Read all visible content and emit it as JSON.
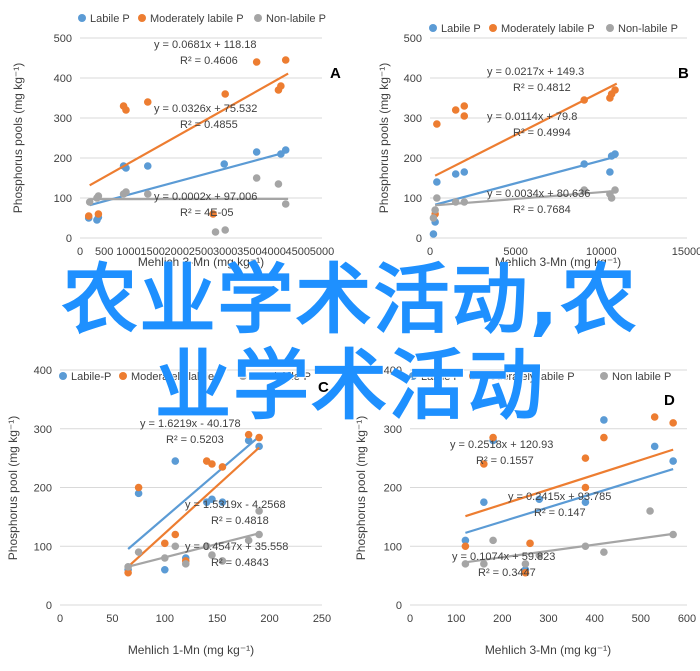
{
  "chart_data": [
    {
      "type": "scatter",
      "panel_label": "A",
      "xlabel": "Mehlich 3-Mn (mg kg⁻¹)",
      "ylabel": "Phosphorus pools (mg kg⁻¹)",
      "xlim": [
        0,
        5000
      ],
      "ylim": [
        0,
        500
      ],
      "xticks": [
        0,
        500,
        1000,
        1500,
        2000,
        2500,
        3000,
        3500,
        4000,
        4500,
        5000
      ],
      "yticks": [
        0,
        100,
        200,
        300,
        400,
        500
      ],
      "legend": "top",
      "series": [
        {
          "name": "Labile P",
          "color": "#5b9bd5",
          "points": [
            [
              180,
              50
            ],
            [
              350,
              45
            ],
            [
              380,
              52
            ],
            [
              900,
              180
            ],
            [
              950,
              175
            ],
            [
              1400,
              180
            ],
            [
              2980,
              185
            ],
            [
              3650,
              215
            ],
            [
              4150,
              210
            ],
            [
              4250,
              220
            ]
          ],
          "trend": [
            200,
            4300
          ],
          "equation": "y = 0.0326x + 75.532",
          "r2": "R² = 0.4855"
        },
        {
          "name": "Moderately labile P",
          "color": "#ed7d31",
          "points": [
            [
              180,
              55
            ],
            [
              380,
              60
            ],
            [
              900,
              330
            ],
            [
              950,
              320
            ],
            [
              1400,
              340
            ],
            [
              2750,
              60
            ],
            [
              3000,
              360
            ],
            [
              3650,
              440
            ],
            [
              4100,
              370
            ],
            [
              4150,
              380
            ],
            [
              4250,
              445
            ]
          ],
          "trend": [
            200,
            4300
          ],
          "equation": "y = 0.0681x + 118.18",
          "r2": "R² = 0.4606"
        },
        {
          "name": "Non-labile P",
          "color": "#a5a5a5",
          "points": [
            [
              200,
              90
            ],
            [
              350,
              100
            ],
            [
              380,
              105
            ],
            [
              900,
              110
            ],
            [
              950,
              115
            ],
            [
              1400,
              110
            ],
            [
              2800,
              15
            ],
            [
              3000,
              20
            ],
            [
              3650,
              150
            ],
            [
              4100,
              135
            ],
            [
              4250,
              85
            ]
          ],
          "trend": [
            200,
            4300
          ],
          "equation": "y = 0.0002x + 97.006",
          "r2": "R² = 4E-05"
        }
      ]
    },
    {
      "type": "scatter",
      "panel_label": "B",
      "xlabel": "Mehlich 3-Mn (mg kg⁻¹)",
      "ylabel": "Phosphorus pools (mg kg⁻¹)",
      "xlim": [
        0,
        15000
      ],
      "ylim": [
        0,
        500
      ],
      "xticks": [
        0,
        5000,
        10000,
        15000
      ],
      "yticks": [
        0,
        100,
        200,
        300,
        400,
        500
      ],
      "legend": "top",
      "series": [
        {
          "name": "Labile P",
          "color": "#5b9bd5",
          "points": [
            [
              200,
              10
            ],
            [
              300,
              40
            ],
            [
              400,
              140
            ],
            [
              1500,
              160
            ],
            [
              2000,
              165
            ],
            [
              9000,
              185
            ],
            [
              10500,
              165
            ],
            [
              10600,
              205
            ],
            [
              10800,
              210
            ]
          ],
          "trend": [
            300,
            10900
          ],
          "equation": "y = 0.0114x + 79.8",
          "r2": "R² = 0.4994"
        },
        {
          "name": "Moderately labile P",
          "color": "#ed7d31",
          "points": [
            [
              300,
              60
            ],
            [
              400,
              285
            ],
            [
              1500,
              320
            ],
            [
              2000,
              305
            ],
            [
              2000,
              330
            ],
            [
              9000,
              345
            ],
            [
              10500,
              350
            ],
            [
              10600,
              360
            ],
            [
              10800,
              370
            ]
          ],
          "trend": [
            300,
            10900
          ],
          "equation": "y = 0.0217x + 149.3",
          "r2": "R² = 0.4812"
        },
        {
          "name": "Non-labile P",
          "color": "#a5a5a5",
          "points": [
            [
              200,
              50
            ],
            [
              300,
              70
            ],
            [
              400,
              100
            ],
            [
              1500,
              90
            ],
            [
              2000,
              90
            ],
            [
              9000,
              120
            ],
            [
              10500,
              110
            ],
            [
              10600,
              100
            ],
            [
              10800,
              120
            ]
          ],
          "trend": [
            300,
            10900
          ],
          "equation": "y = 0.0034x + 80.636",
          "r2": "R² = 0.7684"
        }
      ]
    },
    {
      "type": "scatter",
      "panel_label": "C",
      "xlabel": "Mehlich 1-Mn (mg kg⁻¹)",
      "ylabel": "Phosphorus pool (mg kg⁻¹)",
      "xlim": [
        0,
        250
      ],
      "ylim": [
        0,
        400
      ],
      "xticks": [
        0,
        50,
        100,
        150,
        200,
        250
      ],
      "yticks": [
        0,
        100,
        200,
        300,
        400
      ],
      "legend": "top",
      "series": [
        {
          "name": "Labile-P",
          "color": "#5b9bd5",
          "points": [
            [
              65,
              60
            ],
            [
              75,
              190
            ],
            [
              100,
              60
            ],
            [
              110,
              245
            ],
            [
              120,
              80
            ],
            [
              140,
              175
            ],
            [
              145,
              180
            ],
            [
              155,
              175
            ],
            [
              180,
              280
            ],
            [
              190,
              270
            ]
          ],
          "trend": [
            65,
            190
          ],
          "equation": "y = 1.5319x - 4.2568",
          "r2": "R² = 0.4818"
        },
        {
          "name": "Moderately labile-P",
          "color": "#ed7d31",
          "points": [
            [
              65,
              55
            ],
            [
              75,
              200
            ],
            [
              100,
              105
            ],
            [
              110,
              120
            ],
            [
              120,
              75
            ],
            [
              140,
              245
            ],
            [
              145,
              240
            ],
            [
              155,
              235
            ],
            [
              180,
              290
            ],
            [
              190,
              285
            ]
          ],
          "trend": [
            65,
            190
          ],
          "equation": "y = 1.6219x - 40.178",
          "r2": "R² = 0.5203"
        },
        {
          "name": "Non labile-P",
          "color": "#a5a5a5",
          "points": [
            [
              65,
              65
            ],
            [
              75,
              90
            ],
            [
              100,
              80
            ],
            [
              110,
              100
            ],
            [
              120,
              70
            ],
            [
              140,
              100
            ],
            [
              145,
              85
            ],
            [
              155,
              75
            ],
            [
              180,
              110
            ],
            [
              190,
              160
            ],
            [
              190,
              120
            ]
          ],
          "trend": [
            65,
            190
          ],
          "equation": "y = 0.4547x + 35.558",
          "r2": "R² = 0.4843"
        }
      ]
    },
    {
      "type": "scatter",
      "panel_label": "D",
      "xlabel": "Mehlich 3-Mn (mg kg⁻¹)",
      "ylabel": "Phosphorus pool (mg kg⁻¹)",
      "xlim": [
        0,
        600
      ],
      "ylim": [
        0,
        400
      ],
      "xticks": [
        0,
        100,
        200,
        300,
        400,
        500,
        600
      ],
      "yticks": [
        0,
        100,
        200,
        300,
        400
      ],
      "legend": "top",
      "series": [
        {
          "name": "Labile P",
          "color": "#5b9bd5",
          "points": [
            [
              120,
              110
            ],
            [
              160,
              175
            ],
            [
              180,
              280
            ],
            [
              250,
              60
            ],
            [
              280,
              180
            ],
            [
              380,
              175
            ],
            [
              420,
              315
            ],
            [
              530,
              270
            ],
            [
              570,
              245
            ]
          ],
          "trend": [
            120,
            570
          ],
          "equation": "y = 0.2415x + 93.785",
          "r2": "R² = 0.147"
        },
        {
          "name": "Moderately labile P",
          "color": "#ed7d31",
          "points": [
            [
              120,
              100
            ],
            [
              160,
              240
            ],
            [
              180,
              285
            ],
            [
              250,
              55
            ],
            [
              260,
              105
            ],
            [
              380,
              250
            ],
            [
              380,
              200
            ],
            [
              420,
              285
            ],
            [
              530,
              320
            ],
            [
              570,
              310
            ]
          ],
          "trend": [
            120,
            570
          ],
          "equation": "y = 0.2518x + 120.93",
          "r2": "R² = 0.1557"
        },
        {
          "name": "Non labile P",
          "color": "#a5a5a5",
          "points": [
            [
              120,
              70
            ],
            [
              160,
              70
            ],
            [
              180,
              110
            ],
            [
              250,
              70
            ],
            [
              280,
              85
            ],
            [
              380,
              100
            ],
            [
              420,
              90
            ],
            [
              520,
              160
            ],
            [
              570,
              120
            ]
          ],
          "trend": [
            120,
            570
          ],
          "equation": "y = 0.1074x + 59.823",
          "r2": "R² = 0.3447"
        }
      ]
    }
  ],
  "overlay": {
    "line1": "农业学术活动,农",
    "line2": "业学术活动"
  }
}
